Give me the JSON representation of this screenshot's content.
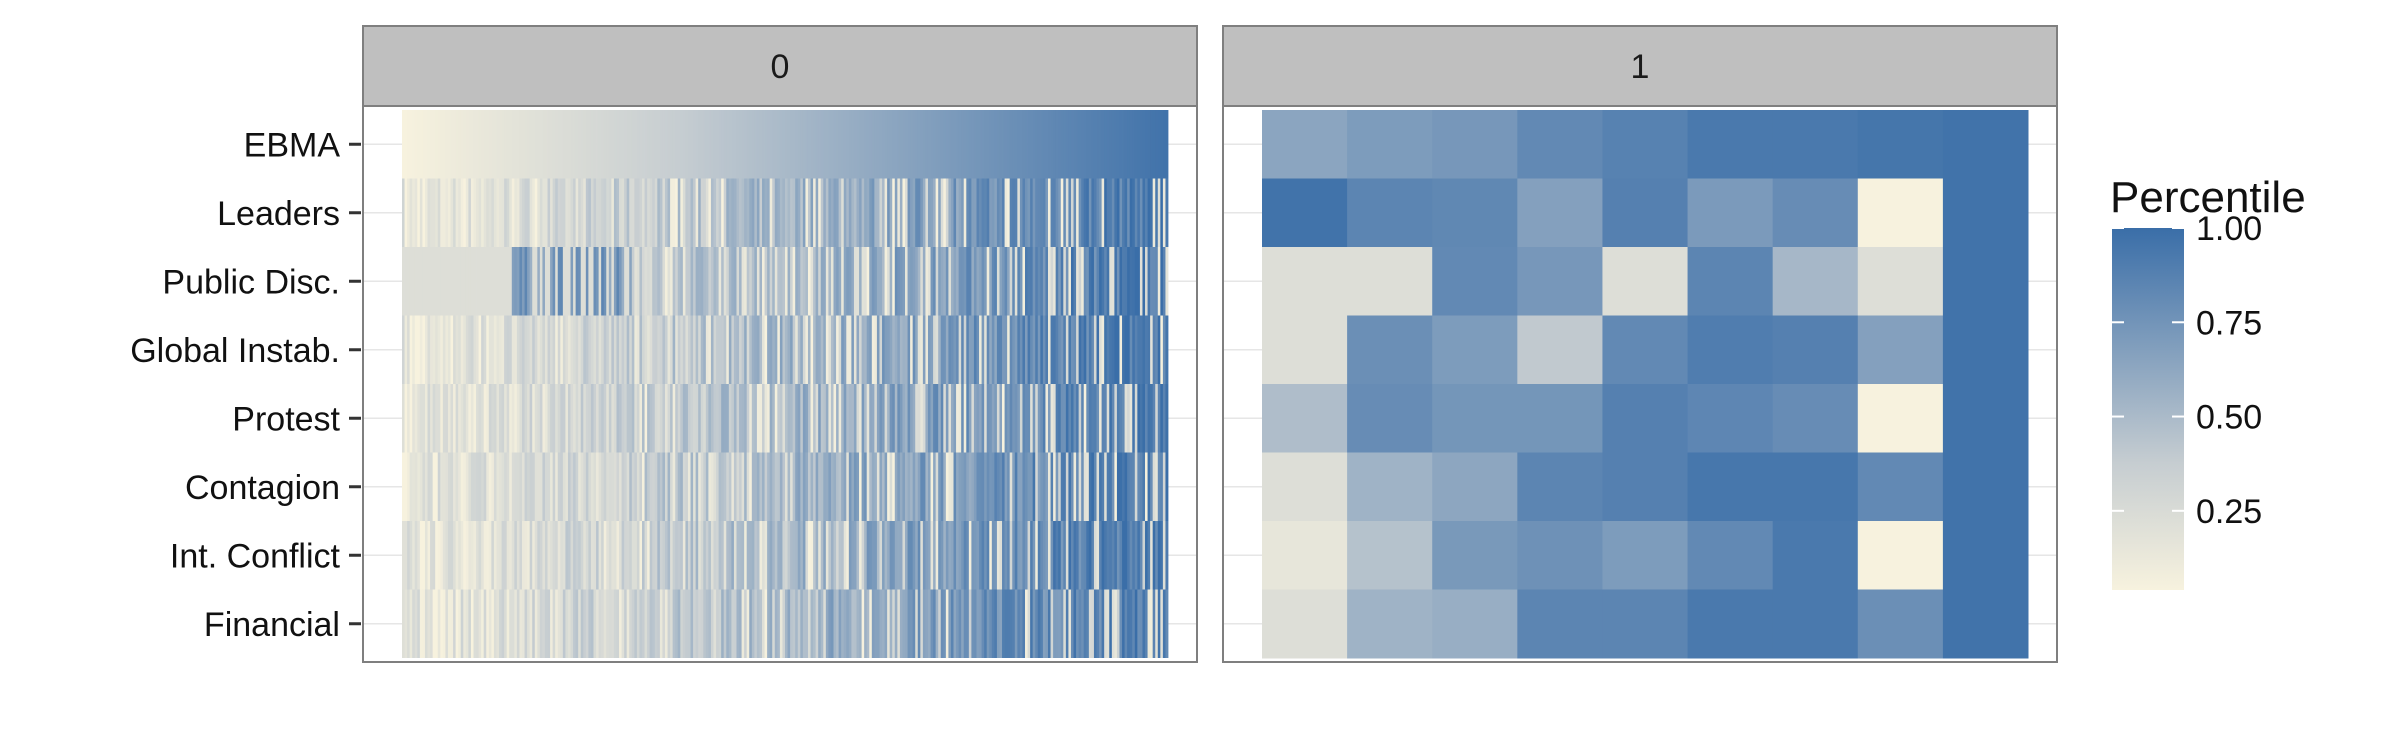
{
  "chart_data": {
    "type": "heatmap",
    "legend": {
      "title": "Percentile",
      "position": "right",
      "ticks": [
        0.25,
        0.5,
        0.75,
        1.0
      ],
      "tick_labels": [
        "0.25",
        "0.50",
        "0.75",
        "1.00"
      ],
      "range": [
        0.04,
        1.0
      ]
    },
    "colors": {
      "low": "#f7f2de",
      "mid": "#c6cdd1",
      "high": "#3a6ea8",
      "strip_bg": "#bfbfbf",
      "panel_border": "#7f7f7f",
      "grid": "#e6e6e6"
    },
    "rows": [
      "EBMA",
      "Leaders",
      "Public Disc.",
      "Global Instab.",
      "Protest",
      "Contagion",
      "Int. Conflict",
      "Financial"
    ],
    "panels": [
      {
        "label": "0",
        "columns": 300,
        "note": "dense per-observation strips; approximate trend from low to high percentile left to right"
      },
      {
        "label": "1",
        "columns": 9,
        "values": [
          [
            0.64,
            0.7,
            0.73,
            0.82,
            0.87,
            0.93,
            0.93,
            0.95,
            0.97
          ],
          [
            0.97,
            0.85,
            0.83,
            0.67,
            0.88,
            0.71,
            0.8,
            0.04,
            0.97
          ],
          [
            0.22,
            0.22,
            0.82,
            0.73,
            0.22,
            0.85,
            0.52,
            0.22,
            0.97
          ],
          [
            0.22,
            0.78,
            0.7,
            0.4,
            0.82,
            0.9,
            0.88,
            0.67,
            0.97
          ],
          [
            0.48,
            0.8,
            0.74,
            0.74,
            0.88,
            0.84,
            0.8,
            0.04,
            0.97
          ],
          [
            0.22,
            0.55,
            0.63,
            0.85,
            0.88,
            0.94,
            0.94,
            0.82,
            0.97
          ],
          [
            0.15,
            0.45,
            0.72,
            0.77,
            0.7,
            0.82,
            0.93,
            0.04,
            0.97
          ],
          [
            0.22,
            0.55,
            0.58,
            0.85,
            0.85,
            0.93,
            0.93,
            0.78,
            0.97
          ]
        ]
      }
    ]
  }
}
